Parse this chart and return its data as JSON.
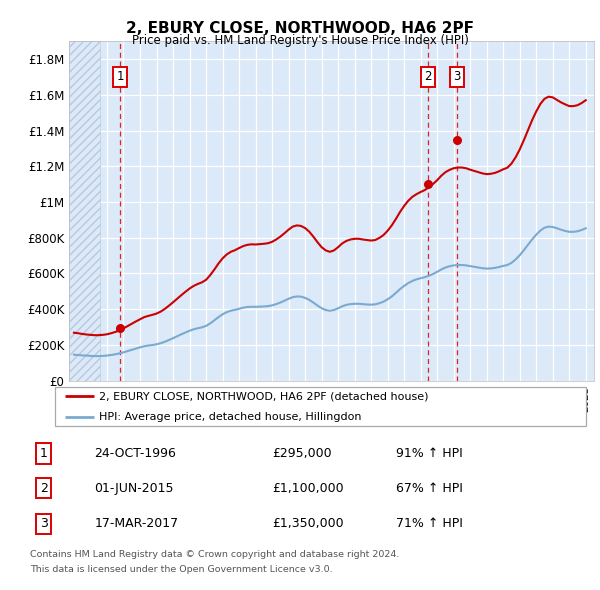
{
  "title": "2, EBURY CLOSE, NORTHWOOD, HA6 2PF",
  "subtitle": "Price paid vs. HM Land Registry's House Price Index (HPI)",
  "plot_bg_color": "#dce9f8",
  "hatch_color": "#b8c8dc",
  "ylim": [
    0,
    1900000
  ],
  "yticks": [
    0,
    200000,
    400000,
    600000,
    800000,
    1000000,
    1200000,
    1400000,
    1600000,
    1800000
  ],
  "ytick_labels": [
    "£0",
    "£200K",
    "£400K",
    "£600K",
    "£800K",
    "£1M",
    "£1.2M",
    "£1.4M",
    "£1.6M",
    "£1.8M"
  ],
  "xlim_start": 1993.7,
  "xlim_end": 2025.5,
  "transactions": [
    {
      "num": 1,
      "date_str": "24-OCT-1996",
      "year": 1996.8,
      "price": 295000,
      "pct": "91%",
      "direction": "↑"
    },
    {
      "num": 2,
      "date_str": "01-JUN-2015",
      "year": 2015.42,
      "price": 1100000,
      "pct": "67%",
      "direction": "↑"
    },
    {
      "num": 3,
      "date_str": "17-MAR-2017",
      "year": 2017.21,
      "price": 1350000,
      "pct": "71%",
      "direction": "↑"
    }
  ],
  "property_line_color": "#cc0000",
  "hpi_line_color": "#7aaad0",
  "legend_property_label": "2, EBURY CLOSE, NORTHWOOD, HA6 2PF (detached house)",
  "legend_hpi_label": "HPI: Average price, detached house, Hillingdon",
  "footer1": "Contains HM Land Registry data © Crown copyright and database right 2024.",
  "footer2": "This data is licensed under the Open Government Licence v3.0.",
  "hpi_data": [
    [
      1994.0,
      145000
    ],
    [
      1994.25,
      143000
    ],
    [
      1994.5,
      141000
    ],
    [
      1994.75,
      140000
    ],
    [
      1995.0,
      138000
    ],
    [
      1995.25,
      137000
    ],
    [
      1995.5,
      137000
    ],
    [
      1995.75,
      138000
    ],
    [
      1996.0,
      140000
    ],
    [
      1996.25,
      143000
    ],
    [
      1996.5,
      147000
    ],
    [
      1996.75,
      152000
    ],
    [
      1997.0,
      158000
    ],
    [
      1997.25,
      165000
    ],
    [
      1997.5,
      172000
    ],
    [
      1997.75,
      179000
    ],
    [
      1998.0,
      186000
    ],
    [
      1998.25,
      192000
    ],
    [
      1998.5,
      196000
    ],
    [
      1998.75,
      199000
    ],
    [
      1999.0,
      203000
    ],
    [
      1999.25,
      209000
    ],
    [
      1999.5,
      217000
    ],
    [
      1999.75,
      227000
    ],
    [
      2000.0,
      237000
    ],
    [
      2000.25,
      248000
    ],
    [
      2000.5,
      259000
    ],
    [
      2000.75,
      269000
    ],
    [
      2001.0,
      279000
    ],
    [
      2001.25,
      287000
    ],
    [
      2001.5,
      293000
    ],
    [
      2001.75,
      298000
    ],
    [
      2002.0,
      306000
    ],
    [
      2002.25,
      320000
    ],
    [
      2002.5,
      337000
    ],
    [
      2002.75,
      355000
    ],
    [
      2003.0,
      371000
    ],
    [
      2003.25,
      383000
    ],
    [
      2003.5,
      391000
    ],
    [
      2003.75,
      396000
    ],
    [
      2004.0,
      402000
    ],
    [
      2004.25,
      408000
    ],
    [
      2004.5,
      412000
    ],
    [
      2004.75,
      413000
    ],
    [
      2005.0,
      413000
    ],
    [
      2005.25,
      414000
    ],
    [
      2005.5,
      415000
    ],
    [
      2005.75,
      417000
    ],
    [
      2006.0,
      421000
    ],
    [
      2006.25,
      428000
    ],
    [
      2006.5,
      437000
    ],
    [
      2006.75,
      447000
    ],
    [
      2007.0,
      458000
    ],
    [
      2007.25,
      467000
    ],
    [
      2007.5,
      471000
    ],
    [
      2007.75,
      470000
    ],
    [
      2008.0,
      463000
    ],
    [
      2008.25,
      452000
    ],
    [
      2008.5,
      437000
    ],
    [
      2008.75,
      420000
    ],
    [
      2009.0,
      405000
    ],
    [
      2009.25,
      395000
    ],
    [
      2009.5,
      391000
    ],
    [
      2009.75,
      395000
    ],
    [
      2010.0,
      405000
    ],
    [
      2010.25,
      416000
    ],
    [
      2010.5,
      424000
    ],
    [
      2010.75,
      428000
    ],
    [
      2011.0,
      430000
    ],
    [
      2011.25,
      430000
    ],
    [
      2011.5,
      428000
    ],
    [
      2011.75,
      426000
    ],
    [
      2012.0,
      425000
    ],
    [
      2012.25,
      427000
    ],
    [
      2012.5,
      433000
    ],
    [
      2012.75,
      442000
    ],
    [
      2013.0,
      455000
    ],
    [
      2013.25,
      471000
    ],
    [
      2013.5,
      491000
    ],
    [
      2013.75,
      512000
    ],
    [
      2014.0,
      530000
    ],
    [
      2014.25,
      546000
    ],
    [
      2014.5,
      558000
    ],
    [
      2014.75,
      567000
    ],
    [
      2015.0,
      573000
    ],
    [
      2015.25,
      579000
    ],
    [
      2015.5,
      587000
    ],
    [
      2015.75,
      597000
    ],
    [
      2016.0,
      609000
    ],
    [
      2016.25,
      622000
    ],
    [
      2016.5,
      633000
    ],
    [
      2016.75,
      640000
    ],
    [
      2017.0,
      645000
    ],
    [
      2017.25,
      647000
    ],
    [
      2017.5,
      647000
    ],
    [
      2017.75,
      645000
    ],
    [
      2018.0,
      641000
    ],
    [
      2018.25,
      637000
    ],
    [
      2018.5,
      633000
    ],
    [
      2018.75,
      629000
    ],
    [
      2019.0,
      627000
    ],
    [
      2019.25,
      628000
    ],
    [
      2019.5,
      631000
    ],
    [
      2019.75,
      636000
    ],
    [
      2020.0,
      642000
    ],
    [
      2020.25,
      647000
    ],
    [
      2020.5,
      659000
    ],
    [
      2020.75,
      678000
    ],
    [
      2021.0,
      702000
    ],
    [
      2021.25,
      730000
    ],
    [
      2021.5,
      760000
    ],
    [
      2021.75,
      790000
    ],
    [
      2022.0,
      817000
    ],
    [
      2022.25,
      840000
    ],
    [
      2022.5,
      856000
    ],
    [
      2022.75,
      862000
    ],
    [
      2023.0,
      860000
    ],
    [
      2023.25,
      853000
    ],
    [
      2023.5,
      845000
    ],
    [
      2023.75,
      838000
    ],
    [
      2024.0,
      833000
    ],
    [
      2024.25,
      833000
    ],
    [
      2024.5,
      836000
    ],
    [
      2024.75,
      843000
    ],
    [
      2025.0,
      853000
    ]
  ],
  "property_data": [
    [
      1994.0,
      268000
    ],
    [
      1994.25,
      265000
    ],
    [
      1994.5,
      261000
    ],
    [
      1994.75,
      258000
    ],
    [
      1995.0,
      256000
    ],
    [
      1995.25,
      254000
    ],
    [
      1995.5,
      254000
    ],
    [
      1995.75,
      256000
    ],
    [
      1996.0,
      259000
    ],
    [
      1996.25,
      265000
    ],
    [
      1996.5,
      272000
    ],
    [
      1996.75,
      281000
    ],
    [
      1997.0,
      292000
    ],
    [
      1997.25,
      305000
    ],
    [
      1997.5,
      318000
    ],
    [
      1997.75,
      331000
    ],
    [
      1998.0,
      343000
    ],
    [
      1998.25,
      355000
    ],
    [
      1998.5,
      362000
    ],
    [
      1998.75,
      368000
    ],
    [
      1999.0,
      375000
    ],
    [
      1999.25,
      386000
    ],
    [
      1999.5,
      401000
    ],
    [
      1999.75,
      419000
    ],
    [
      2000.0,
      438000
    ],
    [
      2000.25,
      458000
    ],
    [
      2000.5,
      478000
    ],
    [
      2000.75,
      497000
    ],
    [
      2001.0,
      515000
    ],
    [
      2001.25,
      530000
    ],
    [
      2001.5,
      541000
    ],
    [
      2001.75,
      550000
    ],
    [
      2002.0,
      564000
    ],
    [
      2002.25,
      590000
    ],
    [
      2002.5,
      621000
    ],
    [
      2002.75,
      655000
    ],
    [
      2003.0,
      684000
    ],
    [
      2003.25,
      706000
    ],
    [
      2003.5,
      721000
    ],
    [
      2003.75,
      730000
    ],
    [
      2004.0,
      742000
    ],
    [
      2004.25,
      753000
    ],
    [
      2004.5,
      760000
    ],
    [
      2004.75,
      763000
    ],
    [
      2005.0,
      762000
    ],
    [
      2005.25,
      764000
    ],
    [
      2005.5,
      766000
    ],
    [
      2005.75,
      769000
    ],
    [
      2006.0,
      777000
    ],
    [
      2006.25,
      790000
    ],
    [
      2006.5,
      806000
    ],
    [
      2006.75,
      825000
    ],
    [
      2007.0,
      845000
    ],
    [
      2007.25,
      862000
    ],
    [
      2007.5,
      869000
    ],
    [
      2007.75,
      866000
    ],
    [
      2008.0,
      854000
    ],
    [
      2008.25,
      834000
    ],
    [
      2008.5,
      806000
    ],
    [
      2008.75,
      775000
    ],
    [
      2009.0,
      747000
    ],
    [
      2009.25,
      729000
    ],
    [
      2009.5,
      721000
    ],
    [
      2009.75,
      729000
    ],
    [
      2010.0,
      747000
    ],
    [
      2010.25,
      768000
    ],
    [
      2010.5,
      782000
    ],
    [
      2010.75,
      790000
    ],
    [
      2011.0,
      794000
    ],
    [
      2011.25,
      794000
    ],
    [
      2011.5,
      790000
    ],
    [
      2011.75,
      787000
    ],
    [
      2012.0,
      784000
    ],
    [
      2012.25,
      787000
    ],
    [
      2012.5,
      799000
    ],
    [
      2012.75,
      815000
    ],
    [
      2013.0,
      839000
    ],
    [
      2013.25,
      869000
    ],
    [
      2013.5,
      905000
    ],
    [
      2013.75,
      944000
    ],
    [
      2014.0,
      978000
    ],
    [
      2014.25,
      1007000
    ],
    [
      2014.5,
      1029000
    ],
    [
      2014.75,
      1044000
    ],
    [
      2015.0,
      1056000
    ],
    [
      2015.25,
      1067000
    ],
    [
      2015.5,
      1082000
    ],
    [
      2015.75,
      1101000
    ],
    [
      2016.0,
      1122000
    ],
    [
      2016.25,
      1147000
    ],
    [
      2016.5,
      1167000
    ],
    [
      2016.75,
      1180000
    ],
    [
      2017.0,
      1189000
    ],
    [
      2017.25,
      1193000
    ],
    [
      2017.5,
      1193000
    ],
    [
      2017.75,
      1189000
    ],
    [
      2018.0,
      1181000
    ],
    [
      2018.25,
      1174000
    ],
    [
      2018.5,
      1167000
    ],
    [
      2018.75,
      1160000
    ],
    [
      2019.0,
      1156000
    ],
    [
      2019.25,
      1158000
    ],
    [
      2019.5,
      1163000
    ],
    [
      2019.75,
      1172000
    ],
    [
      2020.0,
      1183000
    ],
    [
      2020.25,
      1192000
    ],
    [
      2020.5,
      1215000
    ],
    [
      2020.75,
      1250000
    ],
    [
      2021.0,
      1294000
    ],
    [
      2021.25,
      1346000
    ],
    [
      2021.5,
      1402000
    ],
    [
      2021.75,
      1458000
    ],
    [
      2022.0,
      1507000
    ],
    [
      2022.25,
      1549000
    ],
    [
      2022.5,
      1578000
    ],
    [
      2022.75,
      1590000
    ],
    [
      2023.0,
      1586000
    ],
    [
      2023.25,
      1572000
    ],
    [
      2023.5,
      1558000
    ],
    [
      2023.75,
      1547000
    ],
    [
      2024.0,
      1537000
    ],
    [
      2024.25,
      1537000
    ],
    [
      2024.5,
      1542000
    ],
    [
      2024.75,
      1554000
    ],
    [
      2025.0,
      1570000
    ]
  ]
}
